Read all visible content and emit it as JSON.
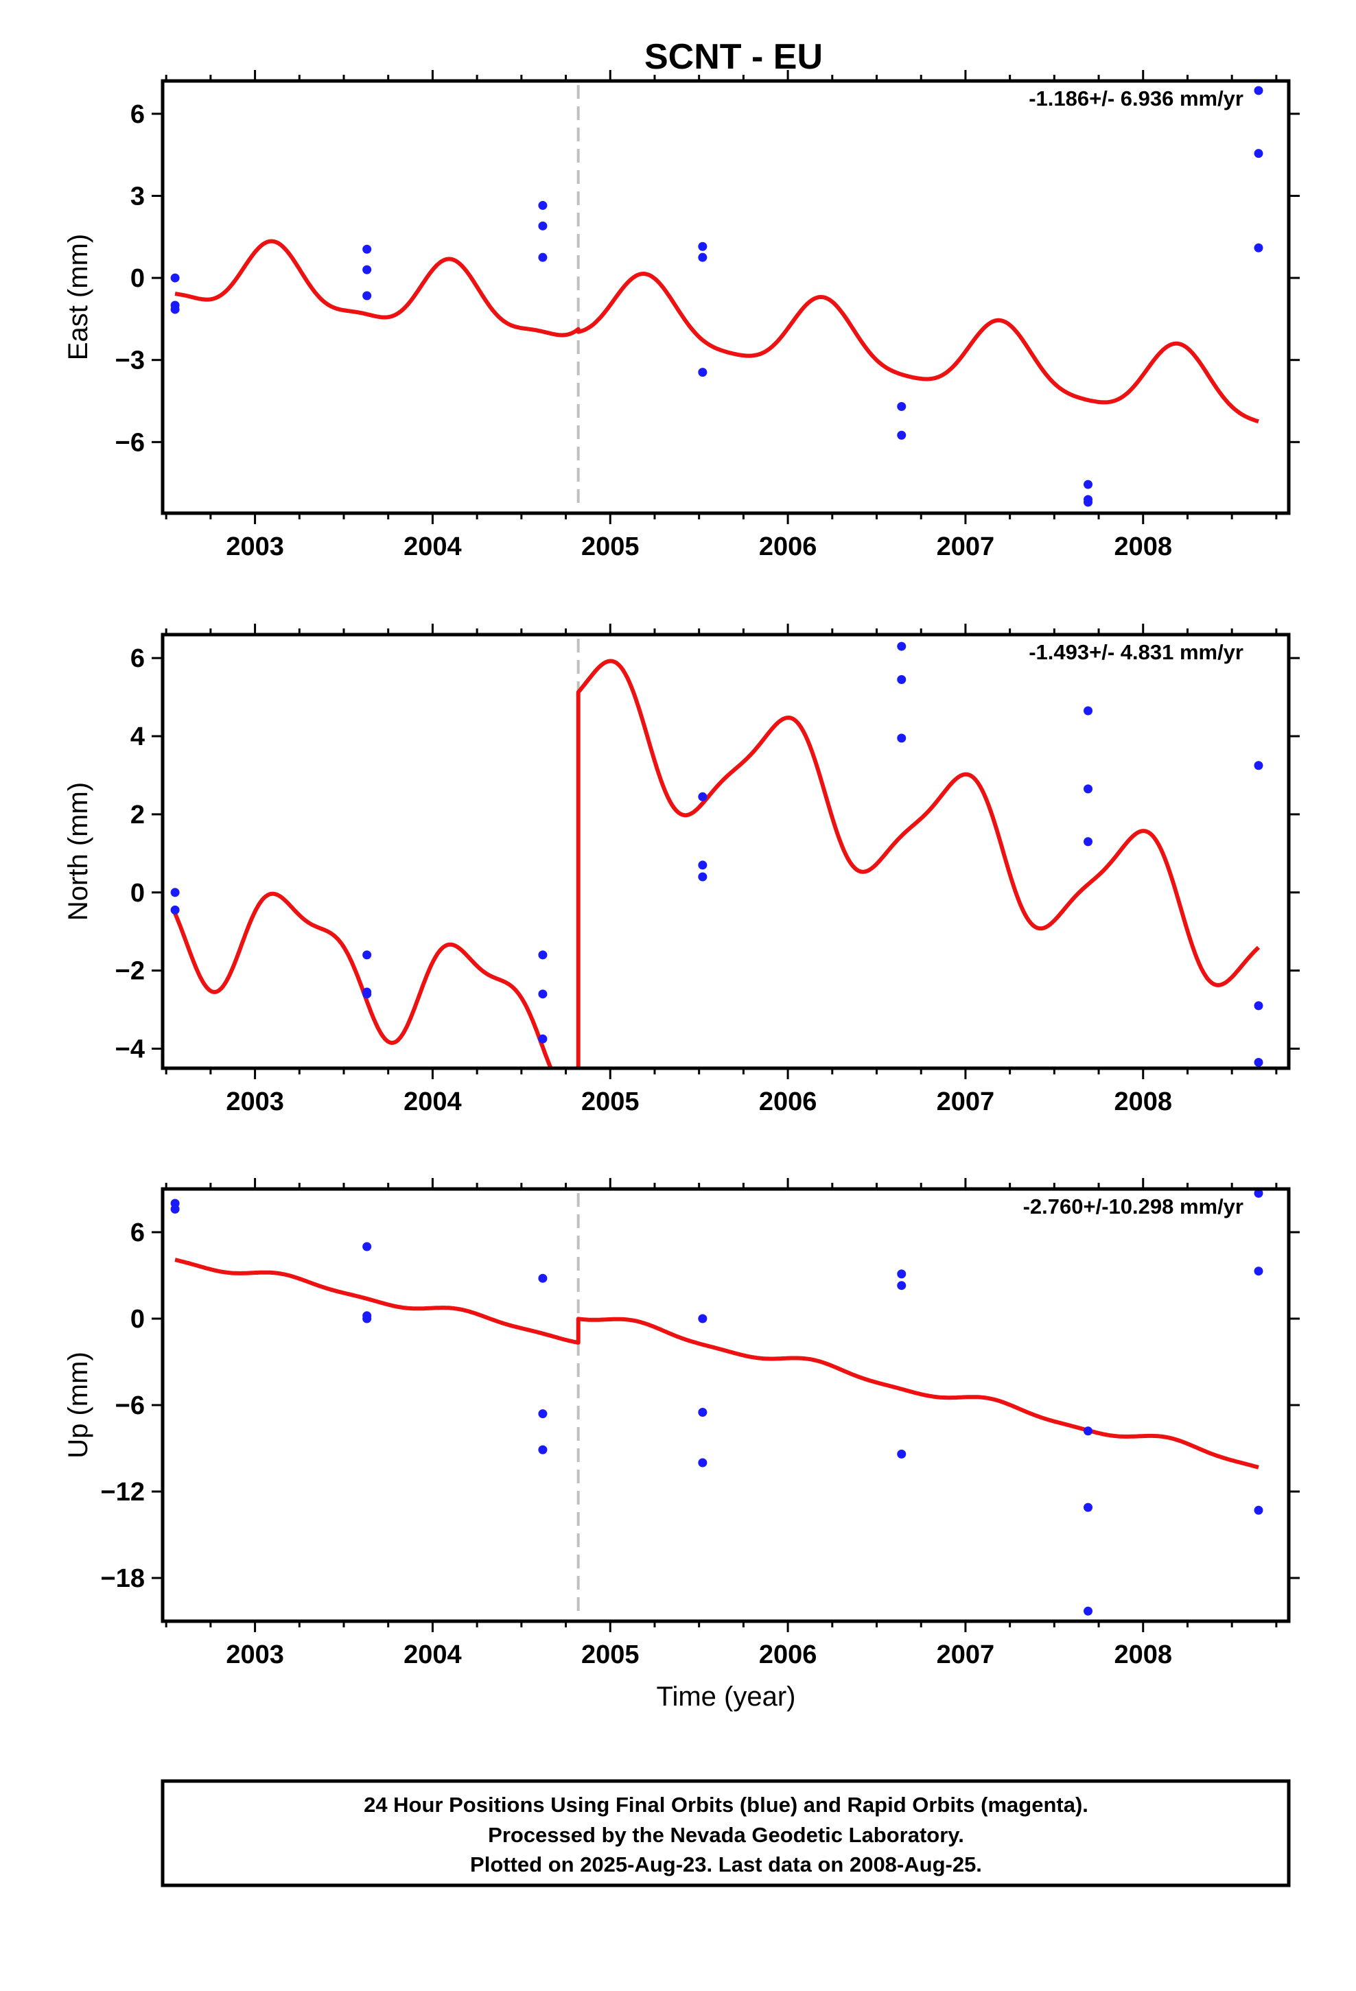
{
  "title": "SCNT - EU",
  "xlabel": "Time (year)",
  "x_ticks": [
    "2003",
    "2004",
    "2005",
    "2006",
    "2007",
    "2008"
  ],
  "colors": {
    "model": "#ee1111",
    "obs": "#1a1aff",
    "offset_line": "#c0c0c0",
    "frame": "#000000"
  },
  "footer": {
    "line1": "24 Hour Positions Using Final Orbits (blue) and Rapid Orbits (magenta).",
    "line2": "Processed by the Nevada Geodetic Laboratory.",
    "line3": "Plotted on 2025-Aug-23. Last data on 2008-Aug-25."
  },
  "chart_data": [
    {
      "type": "scatter",
      "component": "East",
      "ylabel": "East (mm)",
      "rate_label": "-1.186+/- 6.936 mm/yr",
      "xlim": [
        2002.48,
        2008.82
      ],
      "ylim": [
        -8.6,
        7.2
      ],
      "y_ticks": [
        6,
        3,
        0,
        -3,
        -6
      ],
      "y_tick_labels": [
        "6",
        "3",
        "0",
        "−3",
        "−6"
      ],
      "offset_epoch": 2004.82,
      "observations": [
        [
          2002.55,
          0.0
        ],
        [
          2002.55,
          -1.0
        ],
        [
          2002.55,
          -1.15
        ],
        [
          2003.63,
          1.05
        ],
        [
          2003.63,
          0.3
        ],
        [
          2003.63,
          -0.65
        ],
        [
          2004.62,
          2.65
        ],
        [
          2004.62,
          1.9
        ],
        [
          2004.62,
          0.75
        ],
        [
          2005.52,
          1.15
        ],
        [
          2005.52,
          0.75
        ],
        [
          2005.52,
          -3.45
        ],
        [
          2006.64,
          -4.7
        ],
        [
          2006.64,
          -5.75
        ],
        [
          2007.69,
          -7.55
        ],
        [
          2007.69,
          -8.1
        ],
        [
          2007.69,
          -8.2
        ],
        [
          2008.65,
          6.85
        ],
        [
          2008.65,
          4.55
        ],
        [
          2008.65,
          1.1
        ]
      ],
      "model": {
        "series_name": "",
        "ref_epoch": 2002.55,
        "segments": [
          {
            "x": [
              2002.55,
              2004.82
            ],
            "intercept": 0.2,
            "rate": -0.65,
            "amp_annual": 1.15,
            "phase_annual": 0.9,
            "amp_semi": 0.35,
            "phase_semi": 0.4
          },
          {
            "x": [
              2004.82,
              2008.65
            ],
            "intercept": 0.9,
            "rate": -0.85,
            "amp_annual": 1.25,
            "phase_annual": 0.3,
            "amp_semi": 0.25,
            "phase_semi": -0.8
          }
        ]
      }
    },
    {
      "type": "scatter",
      "component": "North",
      "ylabel": "North (mm)",
      "rate_label": "-1.493+/- 4.831 mm/yr",
      "xlim": [
        2002.48,
        2008.82
      ],
      "ylim": [
        -4.5,
        6.6
      ],
      "y_ticks": [
        6,
        4,
        2,
        0,
        -2,
        -4
      ],
      "y_tick_labels": [
        "6",
        "4",
        "2",
        "0",
        "−2",
        "−4"
      ],
      "offset_epoch": 2004.82,
      "observations": [
        [
          2002.55,
          0.0
        ],
        [
          2002.55,
          -0.45
        ],
        [
          2003.63,
          -1.6
        ],
        [
          2003.63,
          -2.55
        ],
        [
          2003.63,
          -2.6
        ],
        [
          2004.62,
          -1.6
        ],
        [
          2004.62,
          -2.6
        ],
        [
          2004.62,
          -3.75
        ],
        [
          2005.52,
          2.45
        ],
        [
          2005.52,
          0.7
        ],
        [
          2005.52,
          0.4
        ],
        [
          2006.64,
          6.3
        ],
        [
          2006.64,
          5.45
        ],
        [
          2006.64,
          3.95
        ],
        [
          2007.69,
          4.65
        ],
        [
          2007.69,
          2.65
        ],
        [
          2007.69,
          1.3
        ],
        [
          2008.65,
          3.25
        ],
        [
          2008.65,
          -2.9
        ],
        [
          2008.65,
          -4.35
        ]
      ],
      "model": {
        "series_name": "",
        "ref_epoch": 2002.55,
        "segments": [
          {
            "x": [
              2002.55,
              2004.82
            ],
            "intercept": -0.5,
            "rate": -1.3,
            "amp_annual": 1.3,
            "phase_annual": 0.1,
            "amp_semi": 0.5,
            "phase_semi": 1.2
          },
          {
            "x": [
              2004.82,
              2008.65
            ],
            "intercept": 7.8,
            "rate": -1.45,
            "amp_annual": 1.55,
            "phase_annual": 1.8,
            "amp_semi": 0.35,
            "phase_semi": 0.5
          }
        ]
      }
    },
    {
      "type": "scatter",
      "component": "Up",
      "ylabel": "Up (mm)",
      "rate_label": "-2.760+/-10.298 mm/yr",
      "xlim": [
        2002.48,
        2008.82
      ],
      "ylim": [
        -21,
        9
      ],
      "y_ticks": [
        6,
        0,
        -6,
        -12,
        -18
      ],
      "y_tick_labels": [
        "6",
        "0",
        "−6",
        "−12",
        "−18"
      ],
      "offset_epoch": 2004.82,
      "observations": [
        [
          2002.55,
          8.0
        ],
        [
          2002.55,
          7.6
        ],
        [
          2003.63,
          5.0
        ],
        [
          2003.63,
          0.2
        ],
        [
          2003.63,
          0.0
        ],
        [
          2004.62,
          2.8
        ],
        [
          2004.62,
          -6.6
        ],
        [
          2004.62,
          -9.1
        ],
        [
          2005.52,
          0.0
        ],
        [
          2005.52,
          -6.5
        ],
        [
          2005.52,
          -10.0
        ],
        [
          2006.64,
          3.1
        ],
        [
          2006.64,
          2.3
        ],
        [
          2006.64,
          -9.4
        ],
        [
          2007.69,
          -7.8
        ],
        [
          2007.69,
          -13.1
        ],
        [
          2007.69,
          -20.3
        ],
        [
          2008.65,
          8.7
        ],
        [
          2008.65,
          3.3
        ],
        [
          2008.65,
          -13.3
        ]
      ],
      "model": {
        "series_name": "",
        "ref_epoch": 2002.55,
        "segments": [
          {
            "x": [
              2002.55,
              2004.82
            ],
            "intercept": 4.2,
            "rate": -2.45,
            "amp_annual": 0.3,
            "phase_annual": 0.3,
            "amp_semi": 0.1,
            "phase_semi": 0.0
          },
          {
            "x": [
              2004.82,
              2008.65
            ],
            "intercept": 6.4,
            "rate": -2.7,
            "amp_annual": 0.35,
            "phase_annual": 0.5,
            "amp_semi": 0.1,
            "phase_semi": 0.0
          }
        ]
      }
    }
  ]
}
